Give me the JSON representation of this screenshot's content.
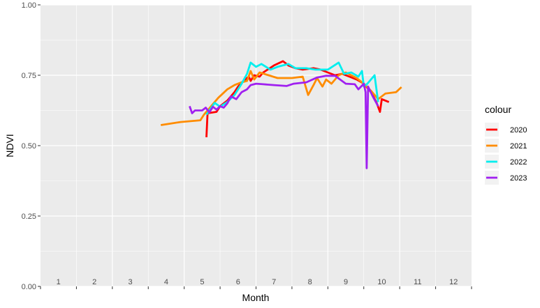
{
  "chart_data": {
    "type": "line",
    "xlabel": "Month",
    "ylabel": "NDVI",
    "xlim": [
      0,
      12
    ],
    "ylim": [
      0,
      1
    ],
    "month_labels": [
      "1",
      "2",
      "3",
      "4",
      "5",
      "6",
      "7",
      "8",
      "9",
      "10",
      "11",
      "12"
    ],
    "y_ticks": [
      "0.00",
      "0.25",
      "0.50",
      "0.75",
      "1.00"
    ],
    "grid": true,
    "legend_title": "colour",
    "legend_position": "right",
    "series": [
      {
        "name": "2020",
        "color": "#ff0000",
        "points": [
          [
            4.62,
            0.53
          ],
          [
            4.65,
            0.615
          ],
          [
            4.9,
            0.62
          ],
          [
            5.0,
            0.64
          ],
          [
            5.2,
            0.66
          ],
          [
            5.4,
            0.69
          ],
          [
            5.5,
            0.71
          ],
          [
            5.65,
            0.73
          ],
          [
            5.8,
            0.745
          ],
          [
            5.85,
            0.73
          ],
          [
            5.95,
            0.75
          ],
          [
            6.1,
            0.745
          ],
          [
            6.2,
            0.76
          ],
          [
            6.5,
            0.785
          ],
          [
            6.75,
            0.8
          ],
          [
            6.9,
            0.785
          ],
          [
            7.1,
            0.775
          ],
          [
            7.3,
            0.77
          ],
          [
            7.6,
            0.775
          ],
          [
            7.8,
            0.77
          ],
          [
            8.0,
            0.76
          ],
          [
            8.2,
            0.75
          ],
          [
            8.4,
            0.755
          ],
          [
            8.6,
            0.745
          ],
          [
            8.8,
            0.735
          ],
          [
            9.0,
            0.72
          ],
          [
            9.2,
            0.69
          ],
          [
            9.35,
            0.655
          ],
          [
            9.45,
            0.62
          ],
          [
            9.5,
            0.665
          ],
          [
            9.7,
            0.655
          ]
        ]
      },
      {
        "name": "2021",
        "color": "#ff8c00",
        "points": [
          [
            3.35,
            0.573
          ],
          [
            3.6,
            0.578
          ],
          [
            3.9,
            0.584
          ],
          [
            4.45,
            0.59
          ],
          [
            4.55,
            0.61
          ],
          [
            4.75,
            0.64
          ],
          [
            4.95,
            0.67
          ],
          [
            5.2,
            0.7
          ],
          [
            5.4,
            0.715
          ],
          [
            5.6,
            0.725
          ],
          [
            5.75,
            0.73
          ],
          [
            5.85,
            0.765
          ],
          [
            5.95,
            0.735
          ],
          [
            6.1,
            0.76
          ],
          [
            6.35,
            0.75
          ],
          [
            6.6,
            0.74
          ],
          [
            7.0,
            0.74
          ],
          [
            7.3,
            0.745
          ],
          [
            7.45,
            0.68
          ],
          [
            7.6,
            0.715
          ],
          [
            7.7,
            0.74
          ],
          [
            7.85,
            0.71
          ],
          [
            7.95,
            0.735
          ],
          [
            8.1,
            0.72
          ],
          [
            8.3,
            0.75
          ],
          [
            8.5,
            0.76
          ],
          [
            8.8,
            0.74
          ],
          [
            9.0,
            0.72
          ],
          [
            9.2,
            0.695
          ],
          [
            9.4,
            0.665
          ],
          [
            9.6,
            0.685
          ],
          [
            9.9,
            0.69
          ],
          [
            10.05,
            0.708
          ]
        ]
      },
      {
        "name": "2022",
        "color": "#00eeee",
        "points": [
          [
            4.62,
            0.61
          ],
          [
            4.85,
            0.652
          ],
          [
            5.0,
            0.638
          ],
          [
            5.2,
            0.655
          ],
          [
            5.4,
            0.68
          ],
          [
            5.6,
            0.72
          ],
          [
            5.75,
            0.755
          ],
          [
            5.85,
            0.795
          ],
          [
            6.0,
            0.78
          ],
          [
            6.15,
            0.79
          ],
          [
            6.4,
            0.77
          ],
          [
            6.6,
            0.78
          ],
          [
            6.9,
            0.79
          ],
          [
            7.1,
            0.775
          ],
          [
            7.4,
            0.775
          ],
          [
            7.65,
            0.77
          ],
          [
            8.0,
            0.77
          ],
          [
            8.3,
            0.795
          ],
          [
            8.45,
            0.755
          ],
          [
            8.65,
            0.76
          ],
          [
            8.85,
            0.745
          ],
          [
            8.95,
            0.765
          ],
          [
            9.0,
            0.71
          ],
          [
            9.1,
            0.72
          ],
          [
            9.3,
            0.75
          ],
          [
            9.4,
            0.655
          ]
        ]
      },
      {
        "name": "2023",
        "color": "#a020f0",
        "points": [
          [
            4.15,
            0.64
          ],
          [
            4.22,
            0.615
          ],
          [
            4.3,
            0.625
          ],
          [
            4.5,
            0.625
          ],
          [
            4.6,
            0.635
          ],
          [
            4.7,
            0.618
          ],
          [
            4.8,
            0.638
          ],
          [
            4.9,
            0.628
          ],
          [
            5.0,
            0.64
          ],
          [
            5.1,
            0.635
          ],
          [
            5.2,
            0.65
          ],
          [
            5.3,
            0.675
          ],
          [
            5.45,
            0.665
          ],
          [
            5.6,
            0.69
          ],
          [
            5.75,
            0.7
          ],
          [
            5.85,
            0.715
          ],
          [
            6.0,
            0.72
          ],
          [
            6.2,
            0.718
          ],
          [
            6.5,
            0.715
          ],
          [
            6.85,
            0.712
          ],
          [
            7.05,
            0.72
          ],
          [
            7.4,
            0.725
          ],
          [
            7.7,
            0.742
          ],
          [
            7.95,
            0.748
          ],
          [
            8.2,
            0.748
          ],
          [
            8.5,
            0.72
          ],
          [
            8.75,
            0.718
          ],
          [
            8.85,
            0.7
          ],
          [
            9.0,
            0.72
          ],
          [
            9.05,
            0.69
          ],
          [
            9.08,
            0.42
          ],
          [
            9.12,
            0.71
          ],
          [
            9.25,
            0.675
          ],
          [
            9.4,
            0.64
          ]
        ]
      }
    ]
  }
}
